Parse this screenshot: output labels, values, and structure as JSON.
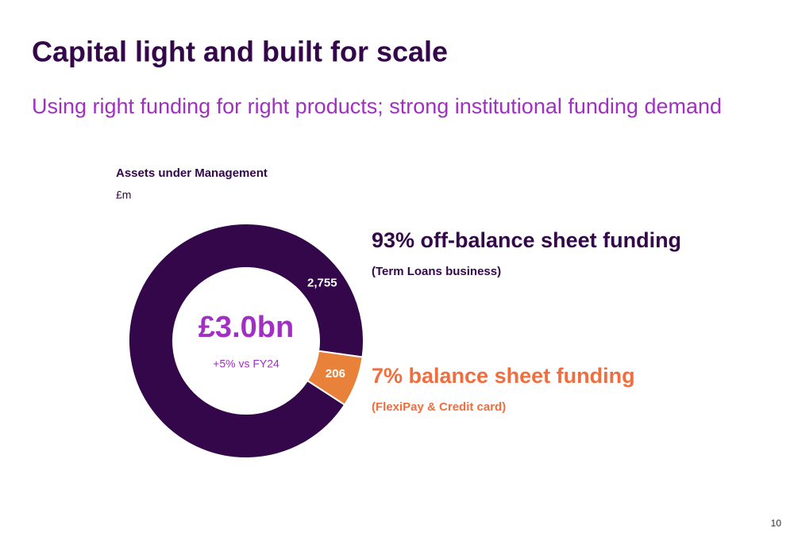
{
  "header": {
    "title": "Capital light and built for scale",
    "subtitle": "Using right funding for right products; strong institutional funding demand"
  },
  "chart_data": {
    "type": "pie",
    "title": "Assets under Management",
    "subtitle": "£m",
    "values": [
      2755,
      206
    ],
    "value_labels": [
      "2,755",
      "206"
    ],
    "colors": [
      "#33074a",
      "#e8813a"
    ],
    "center_label": "£3.0bn",
    "center_sublabel": "+5% vs FY24",
    "annotations": [
      {
        "text": "93% off-balance sheet funding",
        "note": "(Term Loans business)",
        "color": "#33074a"
      },
      {
        "text": "7% balance sheet funding",
        "note": "(FlexiPay & Credit card)",
        "color": "#f26d3d"
      }
    ]
  },
  "page_number": "10"
}
